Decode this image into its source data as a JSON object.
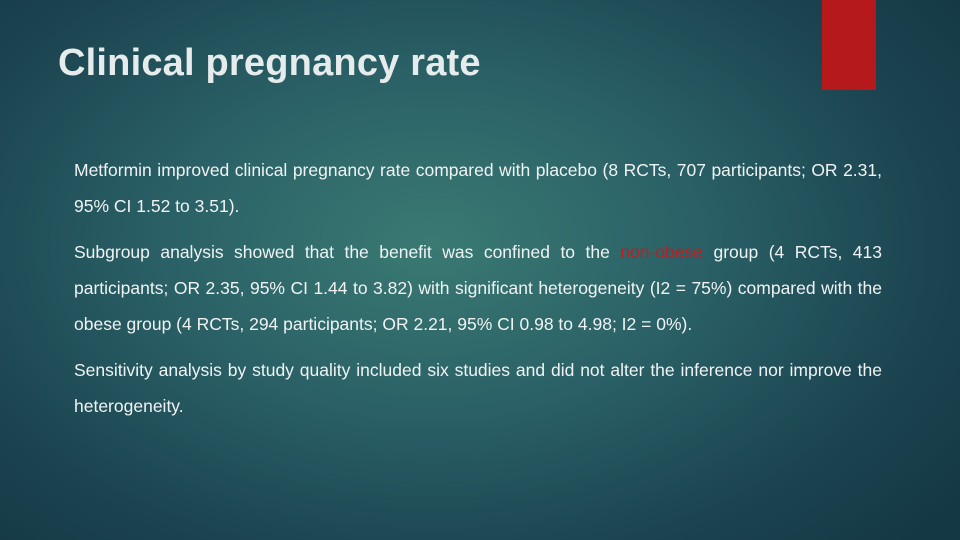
{
  "title": "Clinical pregnancy rate",
  "paragraphs": [
    "Metformin improved clinical pregnancy rate compared with placebo (8 RCTs, 707 participants; OR 2.31, 95% CI 1.52 to 3.51).",
    {
      "before": "Subgroup analysis showed that the benefit was confined to the ",
      "highlight": "non-obese",
      "after": " group (4 RCTs, 413 participants; OR 2.35, 95% CI 1.44 to 3.82) with significant heterogeneity (I2 = 75%) compared with the obese group (4 RCTs, 294 participants; OR 2.21, 95% CI 0.98 to 4.98; I2 = 0%)."
    },
    "Sensitivity analysis by study quality included six studies and did not alter the inference nor improve the heterogeneity."
  ]
}
